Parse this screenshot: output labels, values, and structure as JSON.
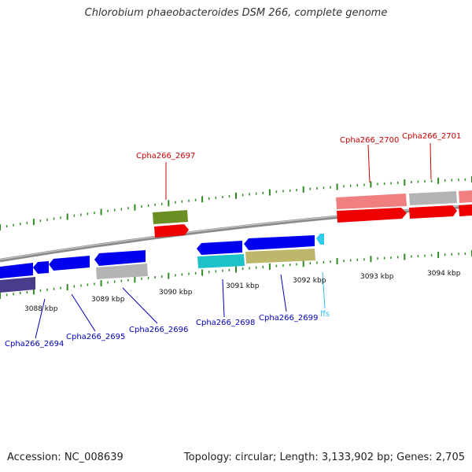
{
  "title": "Chlorobium phaeobacteroides DSM 266, complete genome",
  "footer": {
    "accession": "Accession: NC_008639",
    "summary": "Topology: circular; Length: 3,133,902 bp; Genes: 2,705"
  },
  "colors": {
    "backbone": "#808080",
    "tick": "#2e8b22",
    "forward_label": "#cc0000",
    "reverse_label": "#0000bb",
    "rna_label": "#33bbee"
  },
  "scale_labels": [
    "3088 kbp",
    "3089 kbp",
    "3090 kbp",
    "3091 kbp",
    "3092 kbp",
    "3093 kbp",
    "3094 kbp"
  ],
  "features": [
    {
      "label": "Cpha266_2694",
      "strand": "reverse",
      "color": "#0000ee"
    },
    {
      "label": "Cpha266_2695",
      "strand": "reverse",
      "color": "#0000ee"
    },
    {
      "label": "Cpha266_2696",
      "strand": "reverse",
      "color": "#0000ee"
    },
    {
      "label": "Cpha266_2697",
      "strand": "forward",
      "color": "#ee0000"
    },
    {
      "label": "Cpha266_2698",
      "strand": "reverse",
      "color": "#0000ee"
    },
    {
      "label": "Cpha266_2699",
      "strand": "reverse",
      "color": "#0000ee"
    },
    {
      "label": "ffs",
      "strand": "reverse",
      "color": "#33ccee"
    },
    {
      "label": "Cpha266_2700",
      "strand": "forward",
      "color": "#ee0000"
    },
    {
      "label": "Cpha266_2701",
      "strand": "forward",
      "color": "#ee0000"
    }
  ]
}
